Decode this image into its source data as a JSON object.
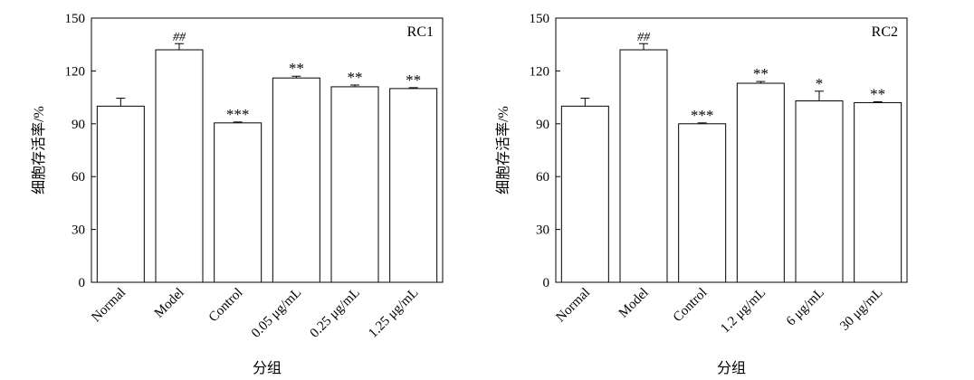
{
  "chart_data": [
    {
      "type": "bar",
      "annotation": "RC1",
      "xlabel": "分组",
      "ylabel": "细胞存活率/%",
      "ylim": [
        0,
        150
      ],
      "yticks": [
        "0",
        "30",
        "60",
        "90",
        "120",
        "150"
      ],
      "categories": [
        "Normal",
        "Model",
        "Control",
        "0.05 μg/mL",
        "0.25 μg/mL",
        "1.25 μg/mL"
      ],
      "values": [
        100,
        132,
        90.5,
        116,
        111,
        110
      ],
      "errors": [
        4.5,
        3.5,
        0.5,
        1,
        1,
        0.5
      ],
      "significance": [
        "",
        "##",
        "***",
        "**",
        "**",
        "**"
      ]
    },
    {
      "type": "bar",
      "annotation": "RC2",
      "xlabel": "分组",
      "ylabel": "细胞存活率/%",
      "ylim": [
        0,
        150
      ],
      "yticks": [
        "0",
        "30",
        "60",
        "90",
        "120",
        "150"
      ],
      "categories": [
        "Normal",
        "Model",
        "Control",
        "1.2 μg/mL",
        "6 μg/mL",
        "30 μg/mL"
      ],
      "values": [
        100,
        132,
        90,
        113,
        103,
        102
      ],
      "errors": [
        4.5,
        3.5,
        0.5,
        1,
        5.5,
        0.5
      ],
      "significance": [
        "",
        "##",
        "***",
        "**",
        "*",
        "**"
      ]
    }
  ]
}
